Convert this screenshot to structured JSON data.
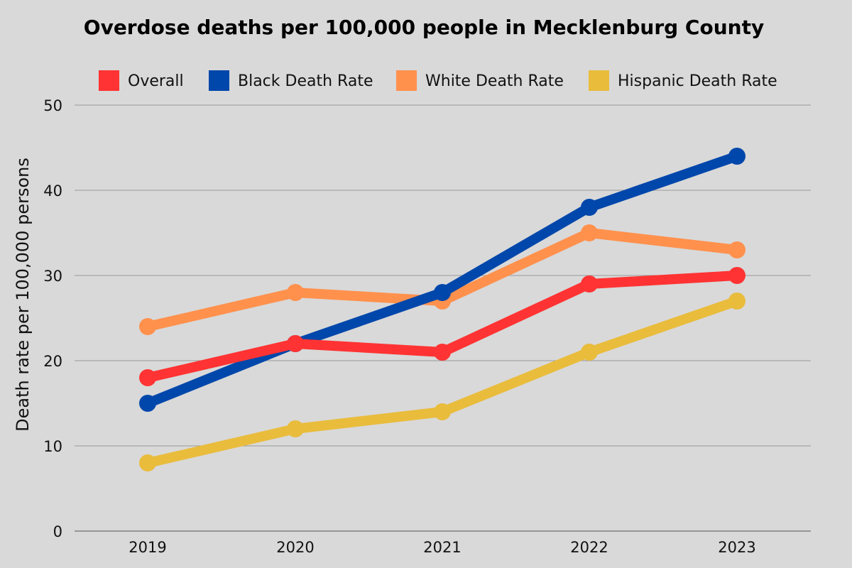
{
  "chart_data": {
    "type": "line",
    "title": "Overdose deaths per 100,000 people in Mecklenburg County",
    "xlabel": "",
    "ylabel": "Death rate per 100,000 persons",
    "categories": [
      "2019",
      "2020",
      "2021",
      "2022",
      "2023"
    ],
    "ylim": [
      0,
      50
    ],
    "yticks": [
      "0",
      "10",
      "20",
      "30",
      "40",
      "50"
    ],
    "grid": true,
    "legend_position": "top",
    "series": [
      {
        "name": "Overall",
        "color": "#ff3333",
        "values": [
          18,
          22,
          21,
          29,
          30
        ]
      },
      {
        "name": "Black Death Rate",
        "color": "#0047ab",
        "values": [
          15,
          22,
          28,
          38,
          44
        ]
      },
      {
        "name": "White Death Rate",
        "color": "#ff914d",
        "values": [
          24,
          28,
          27,
          35,
          33
        ]
      },
      {
        "name": "Hispanic Death Rate",
        "color": "#e9bc3c",
        "values": [
          8,
          12,
          14,
          21,
          27
        ]
      }
    ],
    "draw_order": [
      2,
      1,
      0,
      3
    ]
  }
}
